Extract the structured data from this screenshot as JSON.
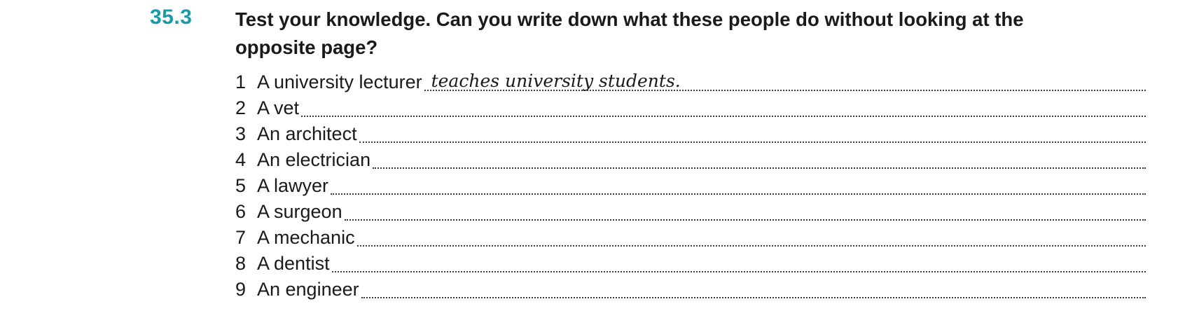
{
  "exercise": {
    "number": "35.3",
    "instruction": "Test your knowledge. Can you write down what these people do without looking at the opposite page?",
    "items": [
      {
        "num": "1",
        "label": "A university lecturer",
        "answer": "teaches university students."
      },
      {
        "num": "2",
        "label": "A vet",
        "answer": ""
      },
      {
        "num": "3",
        "label": "An architect",
        "answer": ""
      },
      {
        "num": "4",
        "label": "An electrician",
        "answer": ""
      },
      {
        "num": "5",
        "label": "A lawyer",
        "answer": ""
      },
      {
        "num": "6",
        "label": "A surgeon",
        "answer": ""
      },
      {
        "num": "7",
        "label": "A mechanic",
        "answer": ""
      },
      {
        "num": "8",
        "label": "A dentist",
        "answer": ""
      },
      {
        "num": "9",
        "label": "An engineer",
        "answer": ""
      }
    ]
  },
  "colors": {
    "accent": "#1a9aa8",
    "text": "#1a1a1a"
  }
}
